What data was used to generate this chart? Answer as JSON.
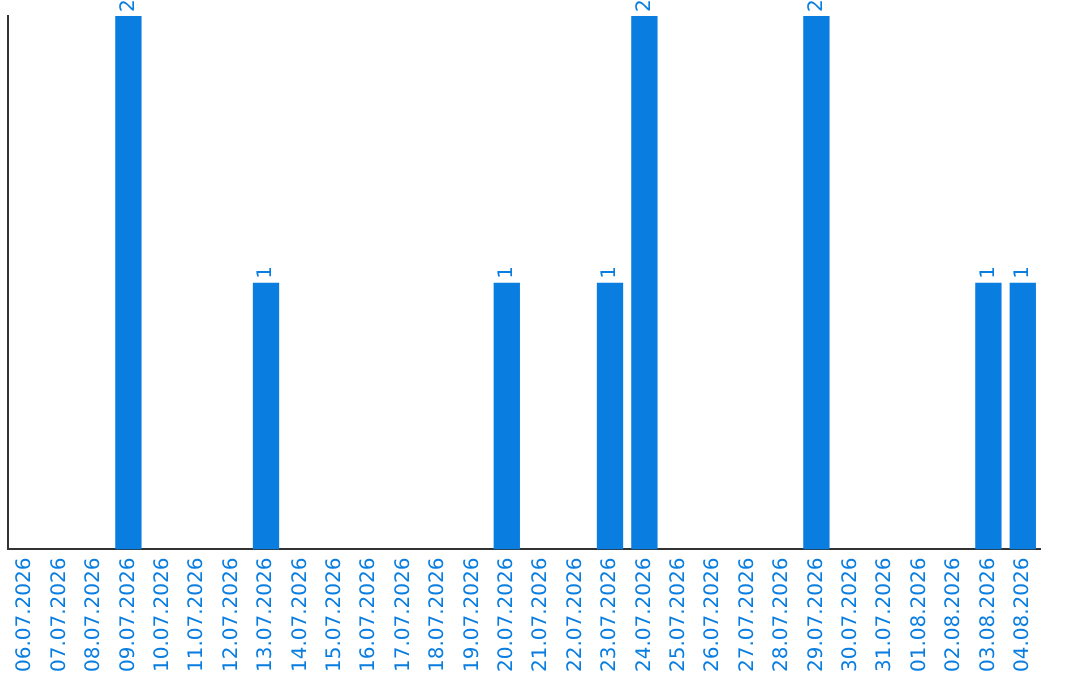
{
  "chart_data": {
    "type": "bar",
    "categories": [
      "06.07.2026",
      "07.07.2026",
      "08.07.2026",
      "09.07.2026",
      "10.07.2026",
      "11.07.2026",
      "12.07.2026",
      "13.07.2026",
      "14.07.2026",
      "15.07.2026",
      "16.07.2026",
      "17.07.2026",
      "18.07.2026",
      "19.07.2026",
      "20.07.2026",
      "21.07.2026",
      "22.07.2026",
      "23.07.2026",
      "24.07.2026",
      "25.07.2026",
      "26.07.2026",
      "27.07.2026",
      "28.07.2026",
      "29.07.2026",
      "30.07.2026",
      "31.07.2026",
      "01.08.2026",
      "02.08.2026",
      "03.08.2026",
      "04.08.2026"
    ],
    "values": [
      0,
      0,
      0,
      2,
      0,
      0,
      0,
      1,
      0,
      0,
      0,
      0,
      0,
      0,
      1,
      0,
      0,
      1,
      2,
      0,
      0,
      0,
      0,
      2,
      0,
      0,
      0,
      0,
      1,
      1
    ],
    "value_labels": [
      null,
      null,
      null,
      "2",
      null,
      null,
      null,
      "1",
      null,
      null,
      null,
      null,
      null,
      null,
      "1",
      null,
      null,
      "1",
      "2",
      null,
      null,
      null,
      null,
      "2",
      null,
      null,
      null,
      null,
      "1",
      "1"
    ],
    "color": "#0a7ee0",
    "grid": false,
    "legend": false,
    "tick_labels": "x"
  }
}
